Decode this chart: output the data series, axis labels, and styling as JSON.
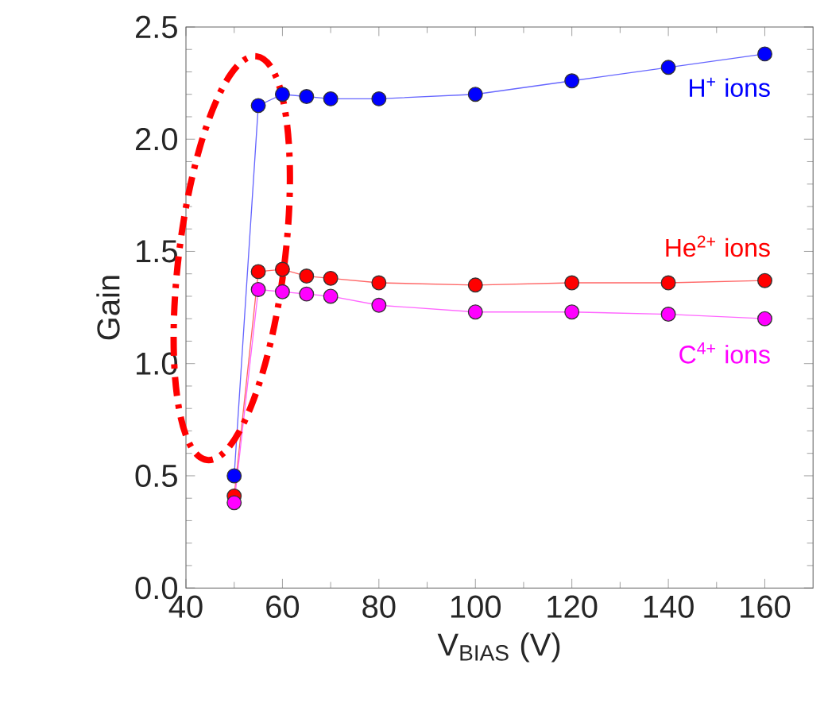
{
  "chart_data": {
    "type": "line",
    "xlabel": "V$_{BIAS}$ (V)",
    "ylabel": "Gain",
    "x": [
      50,
      55,
      60,
      65,
      70,
      80,
      100,
      120,
      140,
      160
    ],
    "series": [
      {
        "name": "H$^{+}$ ions",
        "color": "#0000ff",
        "values": [
          0.5,
          2.15,
          2.2,
          2.19,
          2.18,
          2.18,
          2.2,
          2.26,
          2.32,
          2.38
        ]
      },
      {
        "name": "He$^{2+}$ ions",
        "color": "#ff0000",
        "values": [
          0.41,
          1.41,
          1.42,
          1.39,
          1.38,
          1.36,
          1.35,
          1.36,
          1.36,
          1.37
        ]
      },
      {
        "name": "C$^{4+}$ ions",
        "color": "#ff00ff",
        "values": [
          0.38,
          1.33,
          1.32,
          1.31,
          1.3,
          1.26,
          1.23,
          1.23,
          1.22,
          1.2
        ]
      }
    ],
    "xlim": [
      40,
      170
    ],
    "xticks": [
      40,
      60,
      80,
      100,
      120,
      140,
      160
    ],
    "ylim": [
      0,
      2.5
    ],
    "yticks": [
      {
        "value": 0,
        "label": "0.0"
      },
      {
        "value": 0.5,
        "label": "0.5"
      },
      {
        "value": 1,
        "label": "1.0"
      },
      {
        "value": 1.5,
        "label": "1.5"
      },
      {
        "value": 2,
        "label": "2.0"
      },
      {
        "value": 2.5,
        "label": "2.5"
      }
    ],
    "grid": false,
    "legend": false,
    "marker": "circle",
    "line_style": "solid"
  }
}
